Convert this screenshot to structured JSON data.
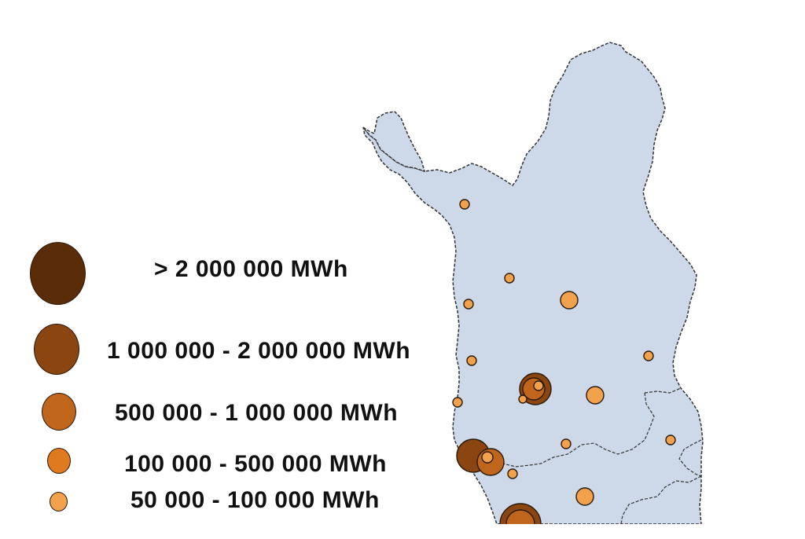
{
  "legend": {
    "items": [
      {
        "label": "> 2 000 000 MWh",
        "color": "#5a2c0a"
      },
      {
        "label": "1 000 000 - 2 000 000 MWh",
        "color": "#8a4510"
      },
      {
        "label": "500 000 - 1 000 000 MWh",
        "color": "#c0661c"
      },
      {
        "label": "100 000 - 500 000 MWh",
        "color": "#e07a1e"
      },
      {
        "label": "50 000 - 100 000 MWh",
        "color": "#f2a24c"
      }
    ]
  },
  "colors": {
    "land": "#cdd9e9",
    "border": "#333333",
    "background": "#ffffff"
  }
}
